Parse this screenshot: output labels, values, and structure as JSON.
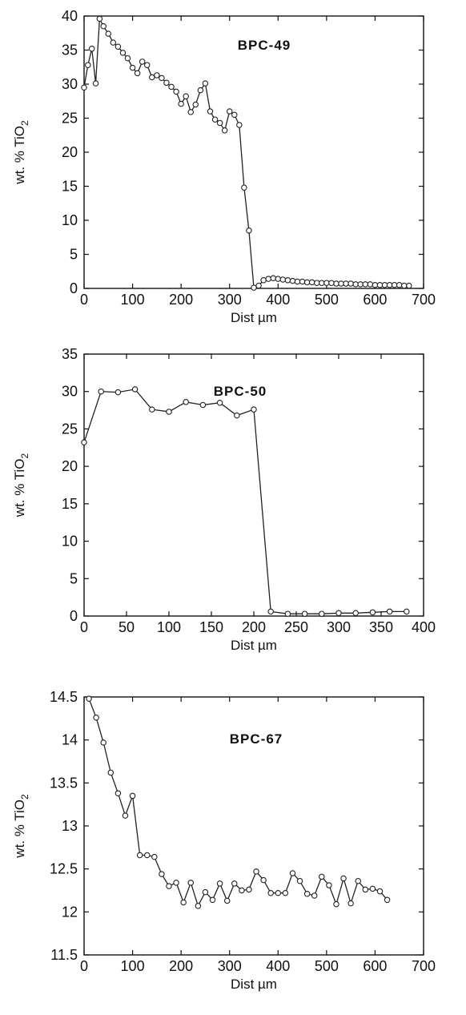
{
  "chart_data": [
    {
      "type": "line",
      "title": "BPC-49",
      "xlabel": "Dist µm",
      "ylabel": "wt. % TiO",
      "ylabel_subscript": "2",
      "xlim": [
        0,
        700
      ],
      "ylim": [
        0,
        40
      ],
      "xticks": [
        0,
        100,
        200,
        300,
        400,
        500,
        600,
        700
      ],
      "yticks": [
        0,
        5,
        10,
        15,
        20,
        25,
        30,
        35,
        40
      ],
      "series": [
        {
          "x": [
            0,
            8,
            16,
            24,
            32,
            40,
            50,
            60,
            70,
            80,
            90,
            100,
            110,
            120,
            130,
            140,
            150,
            160,
            170,
            180,
            190,
            200,
            210,
            220,
            230,
            240,
            250,
            260,
            270,
            280,
            290,
            300,
            310,
            320,
            330,
            340,
            350,
            360,
            370,
            380,
            390,
            400,
            410,
            420,
            430,
            440,
            450,
            460,
            470,
            480,
            490,
            500,
            510,
            520,
            530,
            540,
            550,
            560,
            570,
            580,
            590,
            600,
            610,
            620,
            630,
            640,
            650,
            660,
            670
          ],
          "y": [
            29.5,
            32.8,
            35.2,
            30.1,
            39.6,
            38.5,
            37.4,
            36.1,
            35.5,
            34.6,
            33.8,
            32.4,
            31.6,
            33.3,
            32.8,
            31.0,
            31.3,
            30.9,
            30.2,
            29.6,
            28.9,
            27.1,
            28.2,
            25.9,
            27.0,
            29.1,
            30.1,
            26.0,
            24.8,
            24.3,
            23.2,
            26.0,
            25.5,
            24.0,
            14.8,
            8.5,
            0.1,
            0.4,
            1.2,
            1.4,
            1.5,
            1.4,
            1.3,
            1.2,
            1.1,
            1.0,
            1.0,
            0.9,
            0.9,
            0.8,
            0.8,
            0.8,
            0.8,
            0.7,
            0.7,
            0.7,
            0.7,
            0.6,
            0.6,
            0.6,
            0.6,
            0.5,
            0.5,
            0.5,
            0.5,
            0.5,
            0.5,
            0.4,
            0.4
          ]
        }
      ]
    },
    {
      "type": "line",
      "title": "BPC-50",
      "xlabel": "Dist µm",
      "ylabel": "wt. % TiO",
      "ylabel_subscript": "2",
      "xlim": [
        0,
        400
      ],
      "ylim": [
        0,
        35
      ],
      "xticks": [
        0,
        50,
        100,
        150,
        200,
        250,
        300,
        350,
        400
      ],
      "yticks": [
        0,
        5,
        10,
        15,
        20,
        25,
        30,
        35
      ],
      "series": [
        {
          "x": [
            0,
            20,
            40,
            60,
            80,
            100,
            120,
            140,
            160,
            180,
            200,
            220,
            240,
            260,
            280,
            300,
            320,
            340,
            360,
            380
          ],
          "y": [
            23.2,
            30.0,
            29.9,
            30.3,
            27.6,
            27.3,
            28.6,
            28.2,
            28.5,
            26.8,
            27.6,
            0.6,
            0.3,
            0.3,
            0.3,
            0.4,
            0.4,
            0.5,
            0.6,
            0.6
          ]
        }
      ]
    },
    {
      "type": "line",
      "title": "BPC-67",
      "xlabel": "Dist µm",
      "ylabel": "wt. % TiO",
      "ylabel_subscript": "2",
      "xlim": [
        0,
        700
      ],
      "ylim": [
        11.5,
        14.5
      ],
      "xticks": [
        0,
        100,
        200,
        300,
        400,
        500,
        600,
        700
      ],
      "yticks": [
        11.5,
        12,
        12.5,
        13,
        13.5,
        14,
        14.5
      ],
      "series": [
        {
          "x": [
            10,
            25,
            40,
            55,
            70,
            85,
            100,
            115,
            130,
            145,
            160,
            175,
            190,
            205,
            220,
            235,
            250,
            265,
            280,
            295,
            310,
            325,
            340,
            355,
            370,
            385,
            400,
            415,
            430,
            445,
            460,
            475,
            490,
            505,
            520,
            535,
            550,
            565,
            580,
            595,
            610,
            625
          ],
          "y": [
            14.48,
            14.26,
            13.97,
            13.62,
            13.38,
            13.12,
            13.35,
            12.66,
            12.66,
            12.64,
            12.44,
            12.3,
            12.34,
            12.11,
            12.34,
            12.07,
            12.23,
            12.14,
            12.33,
            12.13,
            12.33,
            12.25,
            12.26,
            12.47,
            12.37,
            12.22,
            12.22,
            12.22,
            12.45,
            12.36,
            12.21,
            12.19,
            12.41,
            12.31,
            12.09,
            12.39,
            12.1,
            12.36,
            12.26,
            12.27,
            12.24,
            12.14
          ]
        }
      ]
    }
  ]
}
